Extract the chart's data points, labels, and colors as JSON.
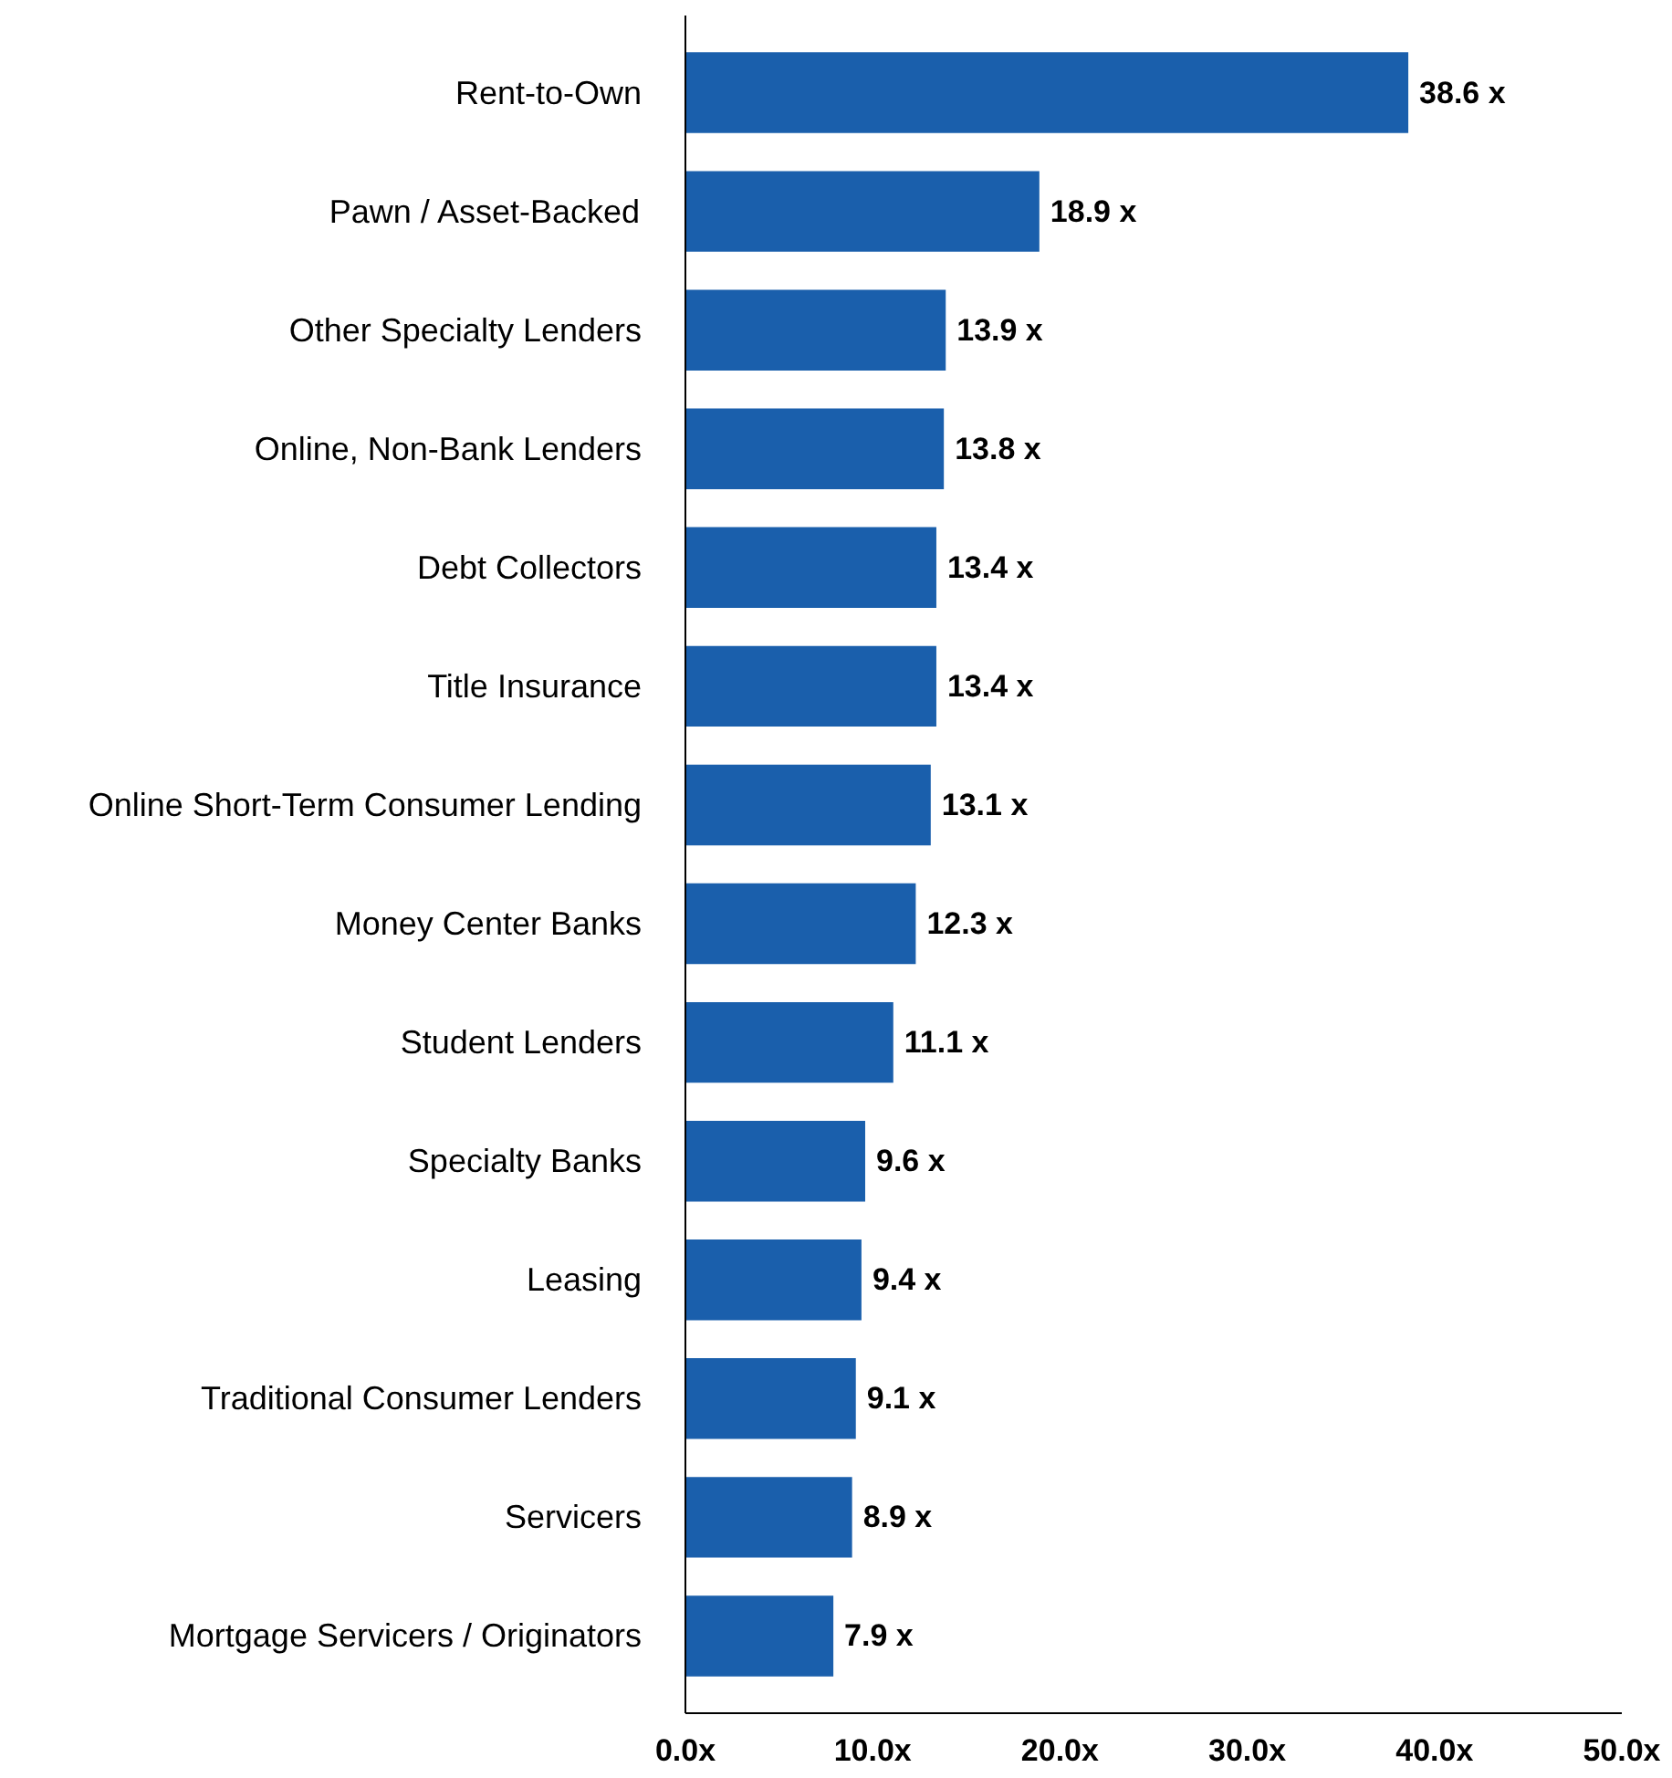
{
  "chart_data": {
    "type": "bar",
    "orientation": "horizontal",
    "categories": [
      "Rent-to-Own",
      "Pawn / Asset-Backed",
      "Other Specialty Lenders",
      "Online, Non-Bank Lenders",
      "Debt Collectors",
      "Title Insurance",
      "Online Short-Term Consumer Lending",
      "Money Center Banks",
      "Student Lenders",
      "Specialty Banks",
      "Leasing",
      "Traditional Consumer Lenders",
      "Servicers",
      "Mortgage Servicers / Originators"
    ],
    "values": [
      38.6,
      18.9,
      13.9,
      13.8,
      13.4,
      13.4,
      13.1,
      12.3,
      11.1,
      9.6,
      9.4,
      9.1,
      8.9,
      7.9
    ],
    "value_labels": [
      "38.6 x",
      "18.9 x",
      "13.9 x",
      "13.8 x",
      "13.4 x",
      "13.4 x",
      "13.1 x",
      "12.3 x",
      "11.1 x",
      "9.6 x",
      "9.4 x",
      "9.1 x",
      "8.9 x",
      "7.9 x"
    ],
    "color": "#1a5fac",
    "xlim": [
      0,
      50
    ],
    "xticks": [
      {
        "value": 0,
        "label": "0.0x"
      },
      {
        "value": 10,
        "label": "10.0x"
      },
      {
        "value": 20,
        "label": "20.0x"
      },
      {
        "value": 30,
        "label": "30.0x"
      },
      {
        "value": 40,
        "label": "40.0x"
      },
      {
        "value": 50,
        "label": "50.0x"
      }
    ],
    "grid": false
  }
}
